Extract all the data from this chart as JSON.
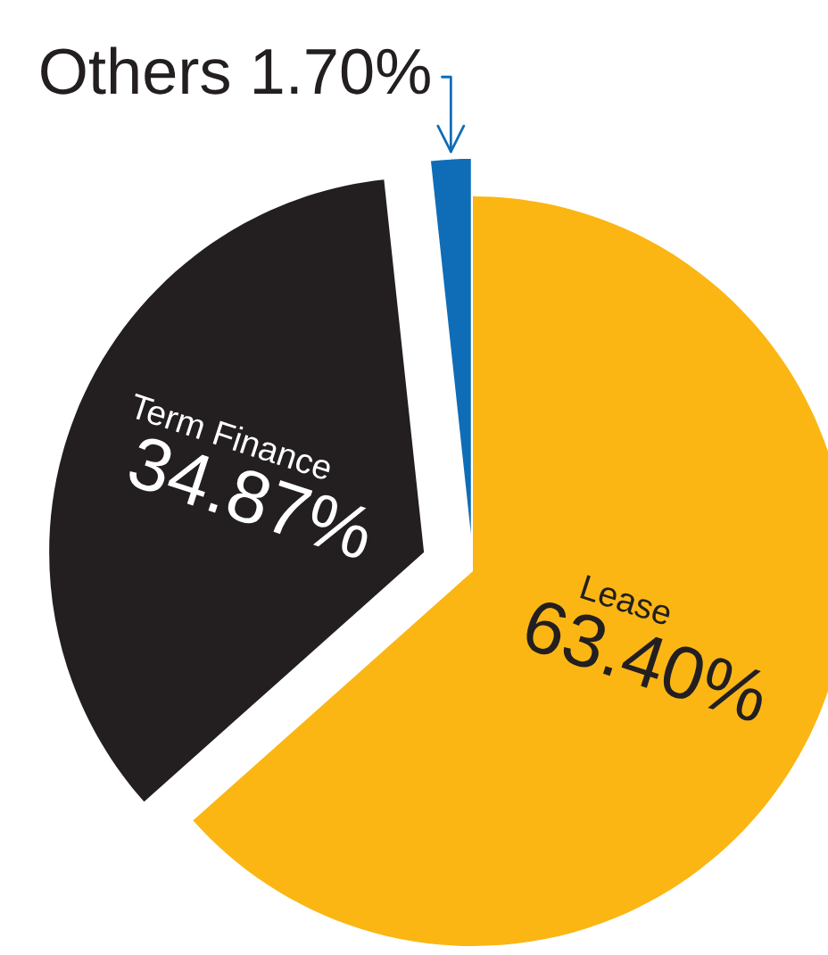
{
  "chart_data": {
    "type": "pie",
    "categories": [
      "Lease",
      "Term Finance",
      "Others"
    ],
    "values": [
      63.4,
      34.87,
      1.7
    ],
    "value_labels": [
      "63.40%",
      "34.87%",
      "1.70%"
    ],
    "colors": [
      "#fbb614",
      "#231f20",
      "#0f6db8"
    ],
    "legend": false
  }
}
